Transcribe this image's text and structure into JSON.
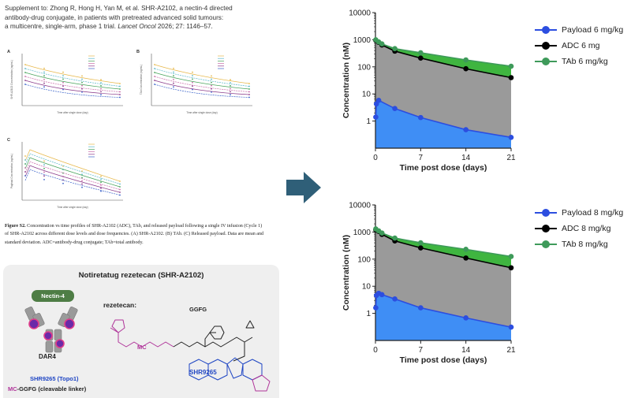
{
  "supplement": {
    "line1": "Supplement to: Zhong R, Hong H, Yan M, et al. SHR-A2102, a nectin-4 directed",
    "line2": "antibody-drug conjugate, in patients with pretreated advanced solid tumours:",
    "line3_pre": "a multicentre, single-arm, phase 1 trial. ",
    "line3_cit": "Lancet Oncol",
    "line3_post": " 2026; 27: 1146–57."
  },
  "figure_caption": {
    "label": "Figure S2.",
    "text": " Concentration vs time profiles of SHR-A2102 (ADC), TAb, and released payload following a single IV infusion (Cycle 1) of SHR-A2102 across different dose levels and dose frequencies. (A) SHR-A2102. (B) TAb. (C) Released payload. Data are mean and standard deviation. ADC=antibody-drug conjugate; TAb=total antibody."
  },
  "mini_panels": [
    {
      "letter": "A",
      "ylabel": "SHR-A2102 Concentration (ng/mL)",
      "xlabel": "Time after single dose (day)"
    },
    {
      "letter": "B",
      "ylabel": "TAb Concentration (ng/mL)",
      "xlabel": "Time after single dose (day)"
    },
    {
      "letter": "C",
      "ylabel": "Payload Concentration (ng/mL)",
      "xlabel": "Time after single dose (day)"
    }
  ],
  "structure": {
    "title": "Notiretatug rezetecan (SHR-A2102)",
    "target": "Nectin-4",
    "dar": "DAR4",
    "payload_name": "SHR9265 (Topo1)",
    "linker_mc": "MC",
    "linker_rest": "-GGFG (cleavable linker)",
    "rez_label": "rezetecan:",
    "ggfg_label": "GGFG",
    "mc_label": "MC",
    "shr_label": "SHR9265"
  },
  "colors": {
    "payload": "#2c4ee0",
    "adc": "#000000",
    "tab": "#3e9a5a",
    "payload_fill": "#3f8ef5",
    "adc_fill": "#9a9a9a",
    "tab_fill": "#3fb540",
    "arrow": "#2f5f78",
    "mc": "#b0359a"
  },
  "chart_data": [
    {
      "type": "line",
      "scale": "log",
      "ylabel": "Concentration (nM)",
      "xlabel": "Time post dose (days)",
      "xticks": [
        0,
        7,
        14,
        21
      ],
      "yticks": [
        "1",
        "10",
        "100",
        "1000",
        "10000"
      ],
      "ylim": [
        0.1,
        10000
      ],
      "xlim": [
        0,
        21
      ],
      "legend_position": "top-right",
      "series": [
        {
          "name": "Payload 6 mg/kg",
          "key": "payload",
          "x": [
            0.05,
            0.15,
            0.5,
            3,
            7,
            14,
            21
          ],
          "y": [
            1.4,
            4.3,
            5.8,
            2.9,
            1.35,
            0.48,
            0.25
          ]
        },
        {
          "name": "ADC 6 mg",
          "key": "adc",
          "x": [
            0.05,
            0.5,
            1,
            3,
            7,
            14,
            21
          ],
          "y": [
            950,
            800,
            640,
            380,
            210,
            85,
            40
          ]
        },
        {
          "name": "TAb 6 mg/kg",
          "key": "tab",
          "x": [
            0.05,
            0.5,
            1,
            3,
            7,
            14,
            21
          ],
          "y": [
            1000,
            830,
            700,
            470,
            330,
            180,
            105
          ]
        }
      ]
    },
    {
      "type": "line",
      "scale": "log",
      "ylabel": "Concentration (nM)",
      "xlabel": "Time post dose (days)",
      "xticks": [
        0,
        7,
        14,
        21
      ],
      "yticks": [
        "1",
        "10",
        "100",
        "1000",
        "10000"
      ],
      "ylim": [
        0.1,
        10000
      ],
      "xlim": [
        0,
        21
      ],
      "legend_position": "top-right",
      "series": [
        {
          "name": "Payload 8 mg/kg",
          "key": "payload",
          "x": [
            0.05,
            0.15,
            0.5,
            1,
            3,
            7,
            14,
            21
          ],
          "y": [
            1.6,
            4.6,
            5.5,
            4.9,
            3.4,
            1.6,
            0.68,
            0.31
          ]
        },
        {
          "name": "ADC 8 mg/kg",
          "key": "adc",
          "x": [
            0.05,
            0.5,
            1,
            3,
            7,
            14,
            21
          ],
          "y": [
            1200,
            1050,
            820,
            470,
            260,
            110,
            48
          ]
        },
        {
          "name": "TAb 8 mg/kg",
          "key": "tab",
          "x": [
            0.05,
            0.5,
            1,
            3,
            7,
            14,
            21
          ],
          "y": [
            1300,
            1100,
            920,
            600,
            400,
            230,
            125
          ]
        }
      ]
    }
  ]
}
